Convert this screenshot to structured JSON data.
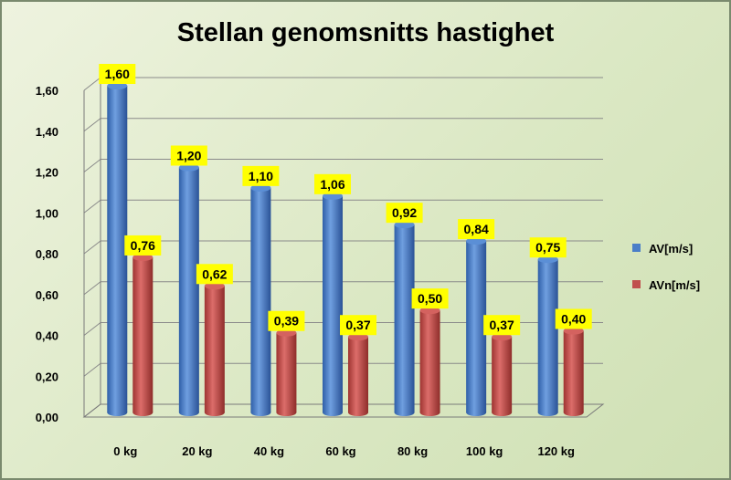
{
  "chart_data": {
    "type": "bar",
    "title": "Stellan genomsnitts hastighet",
    "categories": [
      "0 kg",
      "20 kg",
      "40 kg",
      "60 kg",
      "80 kg",
      "100 kg",
      "120 kg"
    ],
    "series": [
      {
        "name": "AV[m/s]",
        "values": [
          1.6,
          1.2,
          1.1,
          1.06,
          0.92,
          0.84,
          0.75
        ],
        "labels": [
          "1,60",
          "1,20",
          "1,10",
          "1,06",
          "0,92",
          "0,84",
          "0,75"
        ],
        "color": "#4a7ec8"
      },
      {
        "name": "AVn[m/s]",
        "values": [
          0.76,
          0.62,
          0.39,
          0.37,
          0.5,
          0.37,
          0.4
        ],
        "labels": [
          "0,76",
          "0,62",
          "0,39",
          "0,37",
          "0,50",
          "0,37",
          "0,40"
        ],
        "color": "#c0504d"
      }
    ],
    "ylim": [
      0,
      1.6
    ],
    "yticks": [
      "0,00",
      "0,20",
      "0,40",
      "0,60",
      "0,80",
      "1,00",
      "1,20",
      "1,40",
      "1,60"
    ],
    "xlabel": "",
    "ylabel": "",
    "grid": true,
    "legend_position": "right",
    "data_label_background": "#ffff00"
  }
}
